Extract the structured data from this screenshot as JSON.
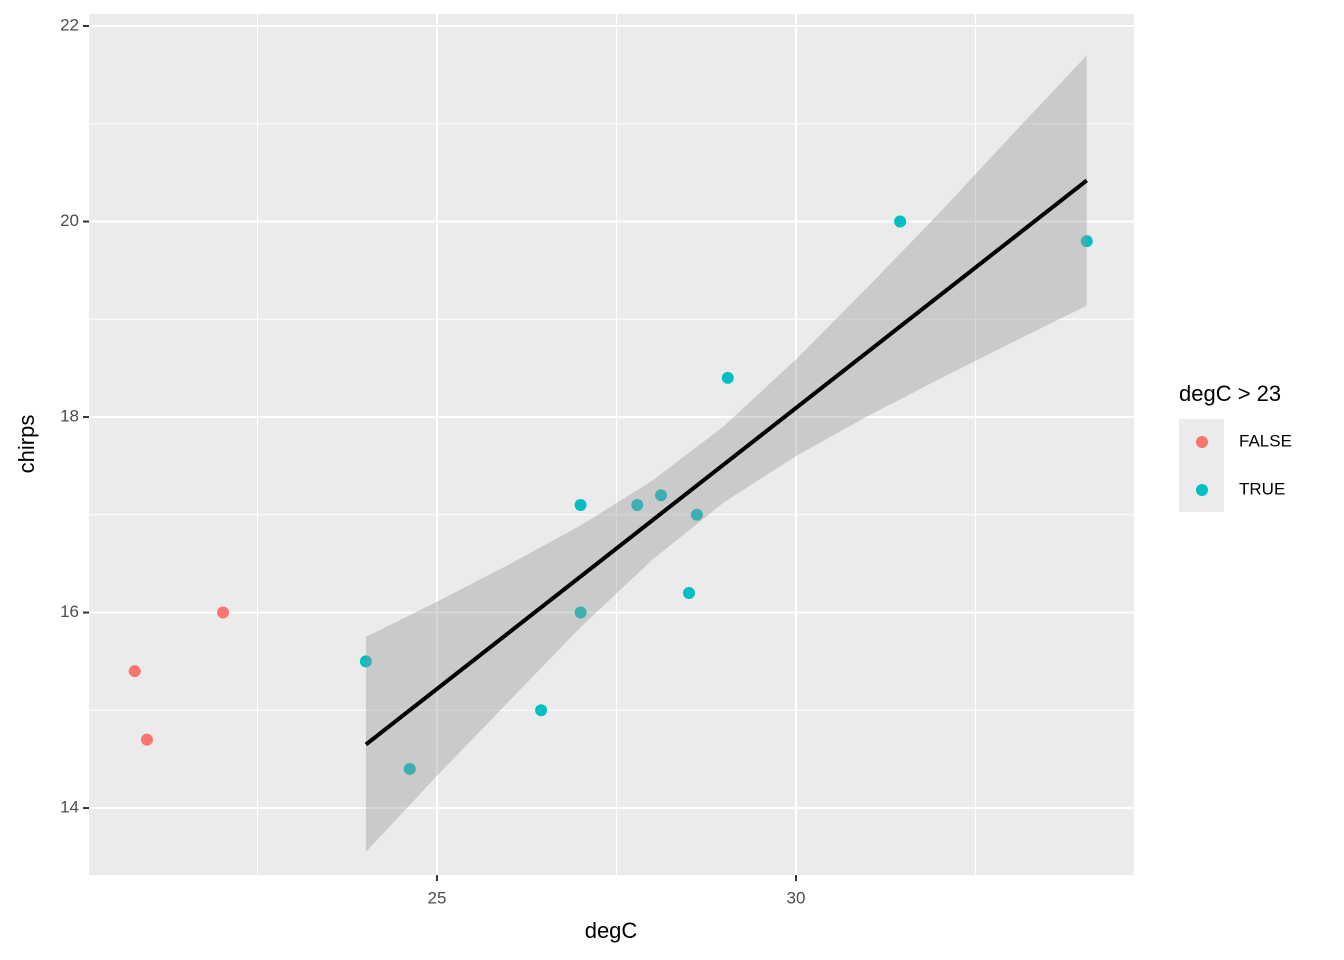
{
  "chart_data": {
    "type": "scatter",
    "x_label": "degC",
    "y_label": "chirps",
    "legend_title": "degC > 23",
    "xlim": [
      20.153,
      34.708
    ],
    "ylim": [
      13.315,
      22.123
    ],
    "xticks": [
      25,
      30
    ],
    "xminor": [
      22.5,
      27.5,
      32.5
    ],
    "yticks": [
      14,
      16,
      18,
      20,
      22
    ],
    "yminor": [
      15,
      17,
      19,
      21
    ],
    "grid": true,
    "series": [
      {
        "name": "FALSE",
        "color": "#F8766D",
        "x": [
          20.79,
          20.96,
          22.02
        ],
        "values": [
          15.4,
          14.7,
          16.0
        ]
      },
      {
        "name": "TRUE",
        "color": "#00BFC4",
        "x": [
          24.01,
          24.62,
          26.45,
          27.0,
          27.0,
          27.79,
          28.12,
          28.51,
          28.62,
          29.05,
          31.45,
          34.05
        ],
        "values": [
          15.5,
          14.4,
          15.0,
          17.1,
          16.0,
          17.1,
          17.2,
          16.2,
          17.0,
          18.4,
          20.0,
          19.8
        ]
      }
    ],
    "fit": {
      "color": "#000000",
      "x": [
        24.01,
        34.05
      ],
      "y": [
        14.65,
        20.42
      ]
    },
    "band": {
      "color": "#999999",
      "x": [
        24.01,
        25,
        26,
        27,
        28,
        29,
        30,
        31,
        32,
        33,
        34.05
      ],
      "upper": [
        15.75,
        16.11,
        16.49,
        16.89,
        17.35,
        17.91,
        18.59,
        19.33,
        20.09,
        20.88,
        21.7
      ],
      "lower": [
        13.55,
        14.33,
        15.09,
        15.85,
        16.54,
        17.13,
        17.6,
        18.01,
        18.39,
        18.76,
        19.14
      ]
    }
  }
}
